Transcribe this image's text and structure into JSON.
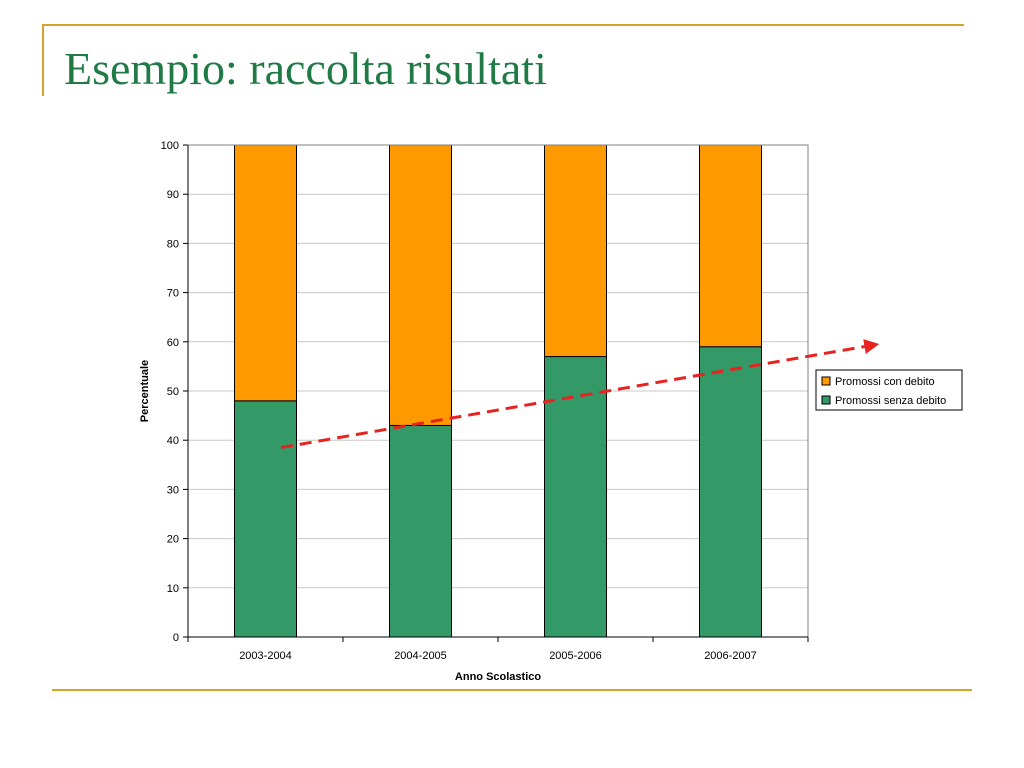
{
  "slide": {
    "title": "Esempio: raccolta risultati",
    "accent_color": "#d4a32a",
    "title_color": "#1f7a45"
  },
  "chart_data": {
    "type": "bar",
    "stacked": true,
    "categories": [
      "2003-2004",
      "2004-2005",
      "2005-2006",
      "2006-2007"
    ],
    "series": [
      {
        "name": "Promossi senza debito",
        "color": "#339966",
        "values": [
          48,
          43,
          57,
          59
        ]
      },
      {
        "name": "Promossi con debito",
        "color": "#ff9900",
        "values": [
          52,
          57,
          43,
          41
        ]
      }
    ],
    "title": "",
    "xlabel": "Anno Scolastico",
    "ylabel": "Percentuale",
    "ylim": [
      0,
      100
    ],
    "yticks": [
      0,
      10,
      20,
      30,
      40,
      50,
      60,
      70,
      80,
      90,
      100
    ],
    "grid": true,
    "legend": {
      "placement": "right",
      "entries": [
        "Promossi con debito",
        "Promossi senza debito"
      ]
    },
    "annotations": [
      {
        "type": "trend-arrow",
        "style": "dashed",
        "color": "#e8231f",
        "from": [
          0.5,
          38.5
        ],
        "to": [
          4.5,
          59.5
        ]
      }
    ]
  }
}
